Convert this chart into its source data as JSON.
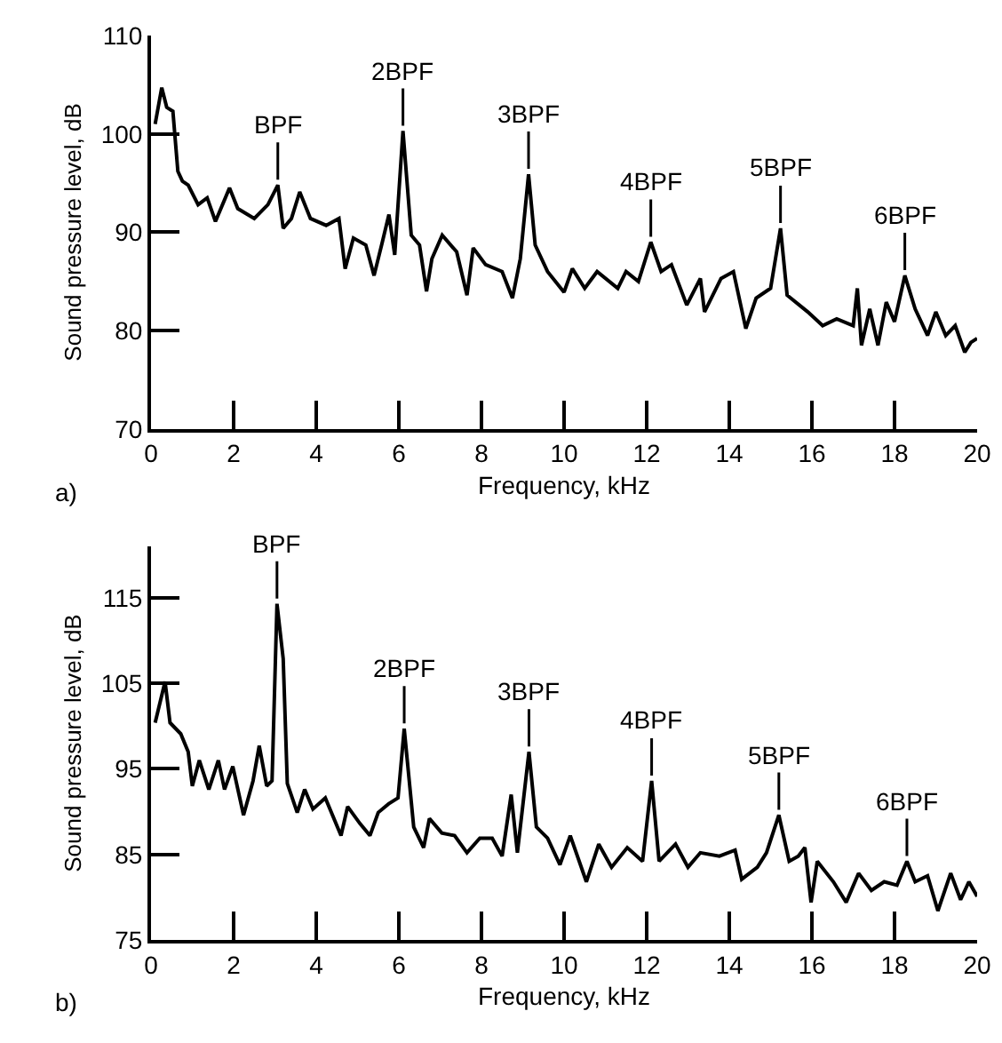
{
  "chart_data": [
    {
      "type": "line",
      "xlabel": "Frequency, kHz",
      "ylabel": "Sound pressure level, dB",
      "color": "#000000",
      "grid": false,
      "legend": false,
      "marker": "none",
      "line_style": "solid",
      "xlim": [
        0,
        20
      ],
      "xticks": [
        0,
        2,
        4,
        6,
        8,
        10,
        12,
        14,
        16,
        18,
        20
      ],
      "ylim": [
        70,
        110
      ],
      "yticks": [
        70,
        80,
        90,
        100,
        110
      ],
      "x": [
        0.1,
        0.26,
        0.38,
        0.53,
        0.65,
        0.76,
        0.9,
        1.14,
        1.36,
        1.56,
        1.9,
        2.1,
        2.5,
        2.83,
        3.07,
        3.2,
        3.4,
        3.6,
        3.86,
        4.24,
        4.55,
        4.7,
        4.9,
        5.2,
        5.4,
        5.6,
        5.76,
        5.9,
        6.1,
        6.3,
        6.5,
        6.67,
        6.8,
        7.05,
        7.4,
        7.65,
        7.8,
        8.1,
        8.5,
        8.75,
        8.94,
        9.14,
        9.3,
        9.6,
        10,
        10.2,
        10.5,
        10.8,
        11.3,
        11.5,
        11.8,
        12.1,
        12.35,
        12.6,
        12.97,
        13.3,
        13.4,
        13.8,
        14.1,
        14.4,
        14.65,
        15,
        15.24,
        15.4,
        15.9,
        16.26,
        16.6,
        17,
        17.1,
        17.2,
        17.4,
        17.6,
        17.8,
        18,
        18.25,
        18.5,
        18.8,
        19,
        19.24,
        19.47,
        19.7,
        19.85,
        20
      ],
      "values": [
        101,
        104.7,
        102.7,
        102.3,
        96.2,
        95.2,
        94.8,
        92.8,
        93.5,
        91.1,
        94.5,
        92.4,
        91.4,
        92.8,
        94.8,
        90.4,
        91.4,
        94.1,
        91.4,
        90.7,
        91.4,
        86.3,
        89.4,
        88.7,
        85.6,
        89,
        91.8,
        87.7,
        100.3,
        89.7,
        88.7,
        84,
        87.3,
        89.7,
        88,
        83.6,
        88.4,
        86.7,
        86,
        83.3,
        87.3,
        95.9,
        88.7,
        86,
        83.9,
        86.3,
        84.3,
        86,
        84.3,
        86,
        85,
        89,
        86,
        86.7,
        82.6,
        85.3,
        81.9,
        85.3,
        86,
        80.2,
        83.3,
        84.3,
        90.4,
        83.6,
        81.9,
        80.5,
        81.2,
        80.5,
        84.3,
        78.5,
        82.2,
        78.5,
        82.9,
        80.9,
        85.6,
        82.2,
        79.5,
        81.9,
        79.5,
        80.5,
        77.8,
        78.8,
        79.2
      ],
      "annotations": [
        {
          "text": "BPF",
          "x": 3.07,
          "y": 94.8
        },
        {
          "text": "2BPF",
          "x": 6.1,
          "y": 100.3
        },
        {
          "text": "3BPF",
          "x": 9.14,
          "y": 95.9
        },
        {
          "text": "4BPF",
          "x": 12.1,
          "y": 89
        },
        {
          "text": "5BPF",
          "x": 15.24,
          "y": 90.4
        },
        {
          "text": "6BPF",
          "x": 18.25,
          "y": 85.6
        },
        "a)"
      ]
    },
    {
      "type": "line",
      "xlabel": "Frequency, kHz",
      "ylabel": "Sound pressure level, dB",
      "color": "#000000",
      "grid": false,
      "legend": false,
      "marker": "none",
      "line_style": "solid",
      "xlim": [
        0,
        20
      ],
      "xticks": [
        0,
        2,
        4,
        6,
        8,
        10,
        12,
        14,
        16,
        18,
        20
      ],
      "ylim": [
        75,
        121
      ],
      "yticks": [
        75,
        85,
        95,
        105,
        115
      ],
      "x": [
        0.1,
        0.34,
        0.46,
        0.72,
        0.9,
        1,
        1.17,
        1.4,
        1.63,
        1.78,
        1.98,
        2.24,
        2.47,
        2.62,
        2.8,
        2.93,
        3.05,
        3.2,
        3.3,
        3.54,
        3.72,
        3.92,
        4.22,
        4.6,
        4.76,
        5.06,
        5.3,
        5.5,
        5.75,
        5.98,
        6.13,
        6.36,
        6.6,
        6.74,
        7.04,
        7.35,
        7.65,
        7.96,
        8.26,
        8.5,
        8.72,
        8.87,
        9.15,
        9.33,
        9.6,
        9.9,
        10.15,
        10.54,
        10.84,
        11.15,
        11.53,
        11.9,
        12.12,
        12.3,
        12.7,
        13,
        13.3,
        13.76,
        14.14,
        14.3,
        14.68,
        14.9,
        15.2,
        15.45,
        15.67,
        15.83,
        15.98,
        16.13,
        16.52,
        16.83,
        17.13,
        17.44,
        17.75,
        18.06,
        18.3,
        18.5,
        18.8,
        19.05,
        19.36,
        19.6,
        19.8,
        20
      ],
      "values": [
        100.4,
        105.2,
        100.4,
        99.1,
        97,
        93,
        96,
        92.6,
        96,
        92.6,
        95.3,
        89.6,
        93.6,
        97.7,
        93,
        93.6,
        114.3,
        107.9,
        93.3,
        89.9,
        92.6,
        90.3,
        91.6,
        87.2,
        90.6,
        88.6,
        87.2,
        89.9,
        90.9,
        91.6,
        99.7,
        88.2,
        85.8,
        89.2,
        87.5,
        87.2,
        85.2,
        86.9,
        86.9,
        84.8,
        92,
        85.2,
        97,
        88.2,
        86.9,
        83.8,
        87.2,
        81.8,
        86.2,
        83.5,
        85.8,
        84.2,
        93.6,
        84.2,
        86.2,
        83.5,
        85.2,
        84.8,
        85.5,
        82.1,
        83.5,
        85.2,
        89.6,
        84.2,
        84.8,
        85.8,
        79.4,
        84.2,
        81.8,
        79.4,
        82.8,
        80.8,
        81.8,
        81.4,
        84.2,
        81.8,
        82.5,
        78.4,
        82.8,
        79.7,
        81.8,
        80.1
      ],
      "annotations": [
        {
          "text": "BPF",
          "x": 3.05,
          "y": 114.3
        },
        {
          "text": "2BPF",
          "x": 6.13,
          "y": 99.7
        },
        {
          "text": "3BPF",
          "x": 9.15,
          "y": 97
        },
        {
          "text": "4BPF",
          "x": 12.12,
          "y": 93.6
        },
        {
          "text": "5BPF",
          "x": 15.2,
          "y": 89.6
        },
        {
          "text": "6BPF",
          "x": 18.3,
          "y": 84.2
        },
        "b)"
      ]
    }
  ]
}
